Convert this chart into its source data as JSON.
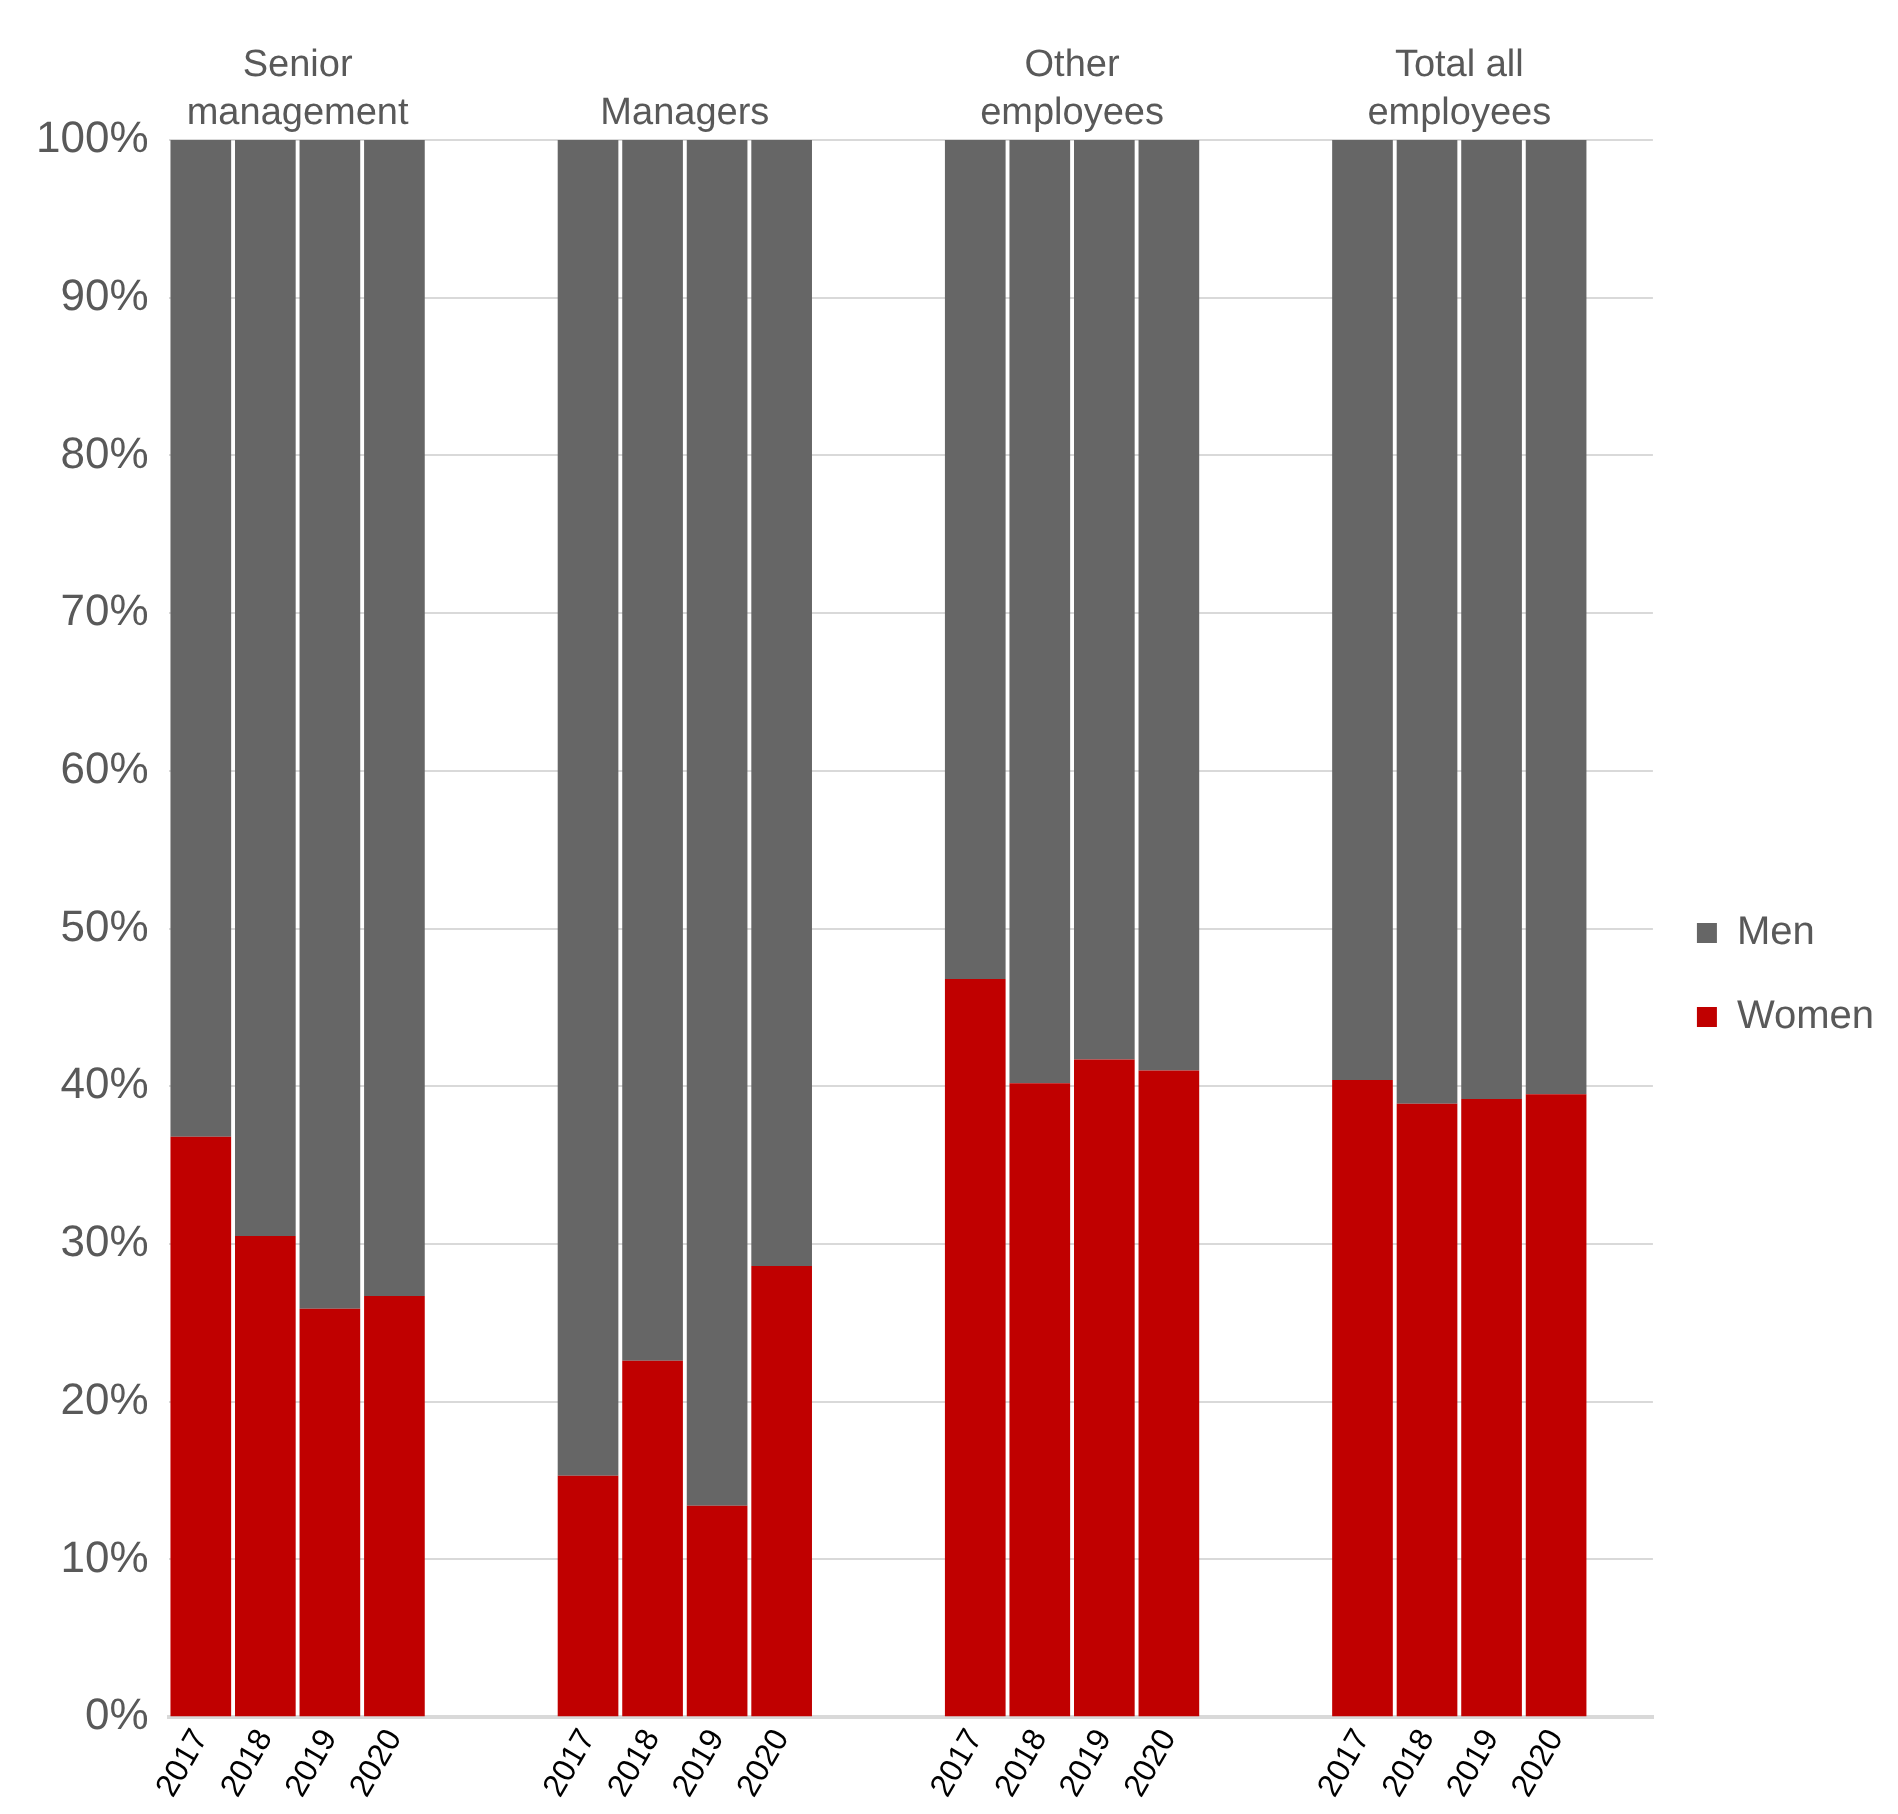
{
  "chart_data": {
    "type": "bar",
    "stacked": true,
    "categories": [
      "2017",
      "2018",
      "2019",
      "2020",
      null,
      null,
      "2017",
      "2018",
      "2019",
      "2020",
      null,
      null,
      "2017",
      "2018",
      "2019",
      "2020",
      null,
      null,
      "2017",
      "2018",
      "2019",
      "2020",
      null
    ],
    "series": [
      {
        "name": "Women",
        "color": "#c00000",
        "values": [
          36.8,
          30.5,
          25.9,
          26.7,
          null,
          null,
          15.3,
          22.6,
          13.4,
          28.6,
          null,
          null,
          46.8,
          40.2,
          41.7,
          41.0,
          null,
          null,
          40.4,
          38.9,
          39.2,
          39.5,
          null
        ]
      },
      {
        "name": "Men",
        "color": "#666666",
        "values": [
          63.2,
          69.5,
          74.1,
          73.3,
          null,
          null,
          84.7,
          77.4,
          86.6,
          71.4,
          null,
          null,
          53.2,
          59.8,
          58.3,
          59.0,
          null,
          null,
          59.6,
          61.1,
          60.8,
          60.5,
          null
        ]
      }
    ],
    "ylim": [
      0,
      100
    ],
    "yticks": [
      {
        "value": 0,
        "label": "0%"
      },
      {
        "value": 10,
        "label": "10%"
      },
      {
        "value": 20,
        "label": "20%"
      },
      {
        "value": 30,
        "label": "30%"
      },
      {
        "value": 40,
        "label": "40%"
      },
      {
        "value": 50,
        "label": "50%"
      },
      {
        "value": 60,
        "label": "60%"
      },
      {
        "value": 70,
        "label": "70%"
      },
      {
        "value": 80,
        "label": "80%"
      },
      {
        "value": 90,
        "label": "90%"
      },
      {
        "value": 100,
        "label": "100%"
      }
    ],
    "grid": "y",
    "legend": "right",
    "annotations": [
      "Senior\nmanagement",
      "Managers",
      "Other\nemployees",
      "Total all\nemployees"
    ]
  }
}
